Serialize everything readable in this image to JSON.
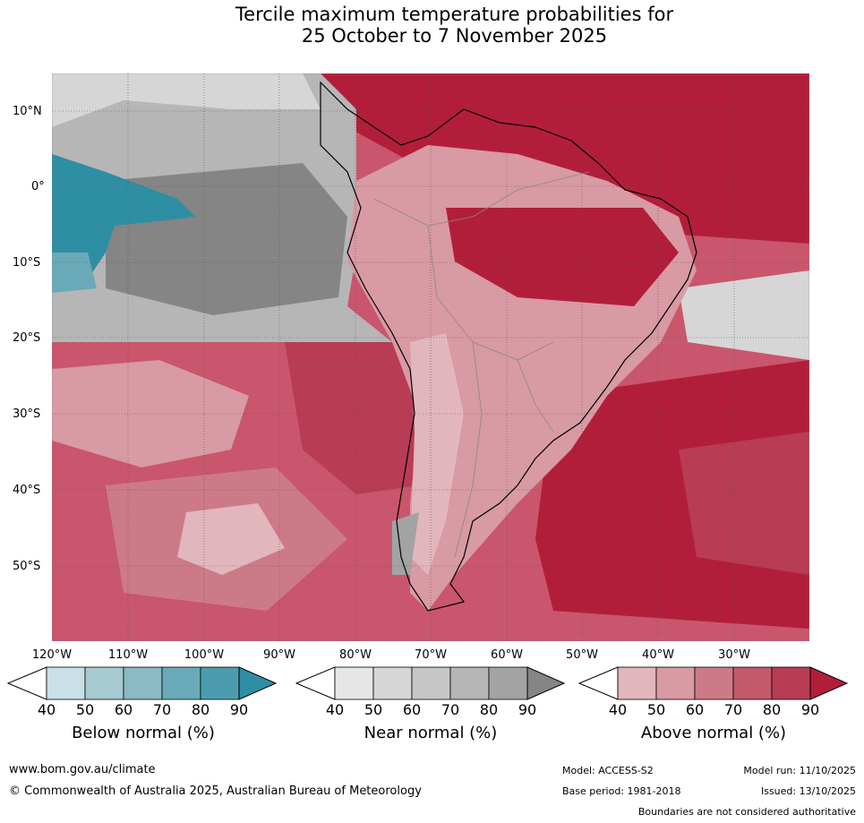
{
  "title": {
    "line1": "Tercile maximum temperature probabilities for",
    "line2": "25 October to 7 November 2025"
  },
  "map": {
    "lat_labels": [
      "10°N",
      "0°",
      "10°S",
      "20°S",
      "30°S",
      "40°S",
      "50°S"
    ],
    "lon_labels": [
      "120°W",
      "110°W",
      "100°W",
      "90°W",
      "80°W",
      "70°W",
      "60°W",
      "50°W",
      "40°W",
      "30°W"
    ]
  },
  "colorbars": [
    {
      "title": "Below normal (%)",
      "ticks": [
        "40",
        "50",
        "60",
        "70",
        "80",
        "90"
      ],
      "colors": [
        "#c9e0e6",
        "#a7c9d0",
        "#8bbac4",
        "#6aaab8",
        "#4b9dae",
        "#2e8ea4"
      ]
    },
    {
      "title": "Near normal (%)",
      "ticks": [
        "40",
        "50",
        "60",
        "70",
        "80",
        "90"
      ],
      "colors": [
        "#e6e6e6",
        "#d6d6d6",
        "#c6c6c6",
        "#b6b6b6",
        "#a3a3a3",
        "#858585"
      ]
    },
    {
      "title": "Above normal (%)",
      "ticks": [
        "40",
        "50",
        "60",
        "70",
        "80",
        "90"
      ],
      "colors": [
        "#e2b6bd",
        "#d89aa4",
        "#cd7a88",
        "#c25a6c",
        "#b83c53",
        "#b21e3a"
      ]
    }
  ],
  "footer": {
    "url": "www.bom.gov.au/climate",
    "copyright": "© Commonwealth of Australia 2025, Australian Bureau of Meteorology",
    "model": "Model: ACCESS-S2",
    "model_run": "Model run: 11/10/2025",
    "base_period": "Base period: 1981-2018",
    "issued": "Issued: 13/10/2025",
    "boundaries": "Boundaries are not considered authoritative"
  }
}
